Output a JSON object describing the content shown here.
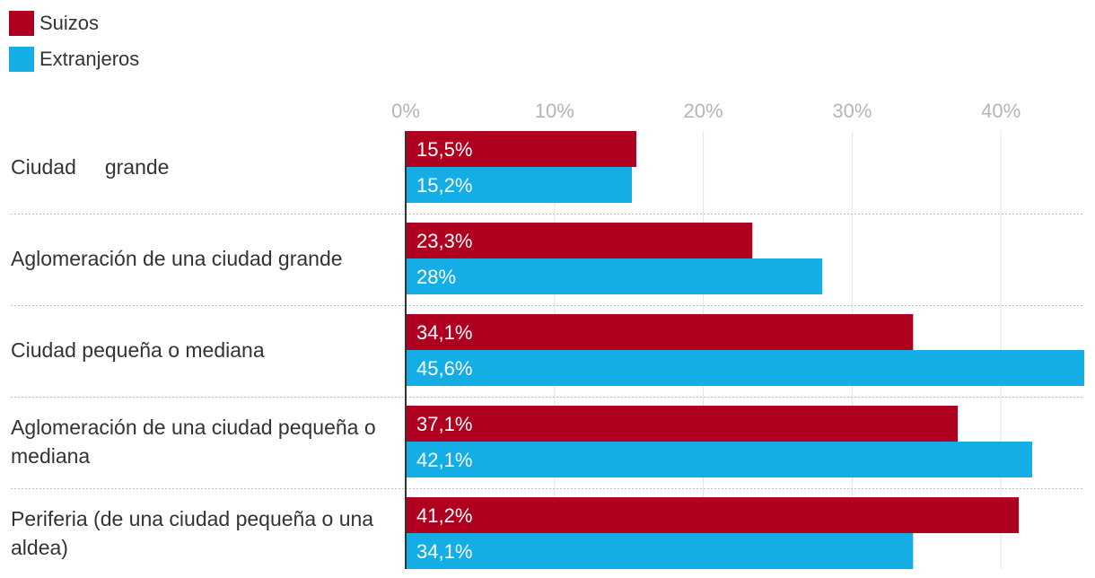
{
  "colors": {
    "suizos": "#b00020",
    "extranjeros": "#14ade5"
  },
  "legend": [
    {
      "label": "Suizos",
      "color": "#b00020"
    },
    {
      "label": "Extranjeros",
      "color": "#14ade5"
    }
  ],
  "chart_data": {
    "type": "bar",
    "orientation": "horizontal",
    "categories": [
      "Ciudad grande",
      "Aglomeración de una ciudad grande",
      "Ciudad pequeña o mediana",
      "Aglomeración de una ciudad pequeña o mediana",
      "Periferia (de una ciudad pequeña o una aldea)"
    ],
    "category_lines": [
      [
        "Ciudad     grande"
      ],
      [
        "Aglomeración de una ciudad grande"
      ],
      [
        "Ciudad pequeña o mediana"
      ],
      [
        "Aglomeración de una ciudad pequeña o",
        "mediana"
      ],
      [
        "Periferia (de una ciudad pequeña o una",
        "aldea)"
      ]
    ],
    "series": [
      {
        "name": "Suizos",
        "values": [
          15.5,
          23.3,
          34.1,
          37.1,
          41.2
        ],
        "labels": [
          "15,5%",
          "23,3%",
          "34,1%",
          "37,1%",
          "41,2%"
        ]
      },
      {
        "name": "Extranjeros",
        "values": [
          15.2,
          28,
          45.6,
          42.1,
          34.1
        ],
        "labels": [
          "15,2%",
          "28%",
          "45,6%",
          "42,1%",
          "34,1%"
        ]
      }
    ],
    "xticks": [
      0,
      10,
      20,
      30,
      40
    ],
    "xtick_labels": [
      "0%",
      "10%",
      "20%",
      "30%",
      "40%"
    ],
    "xlim": [
      0,
      45.6
    ],
    "legend_position": "top-left",
    "grid": true
  }
}
